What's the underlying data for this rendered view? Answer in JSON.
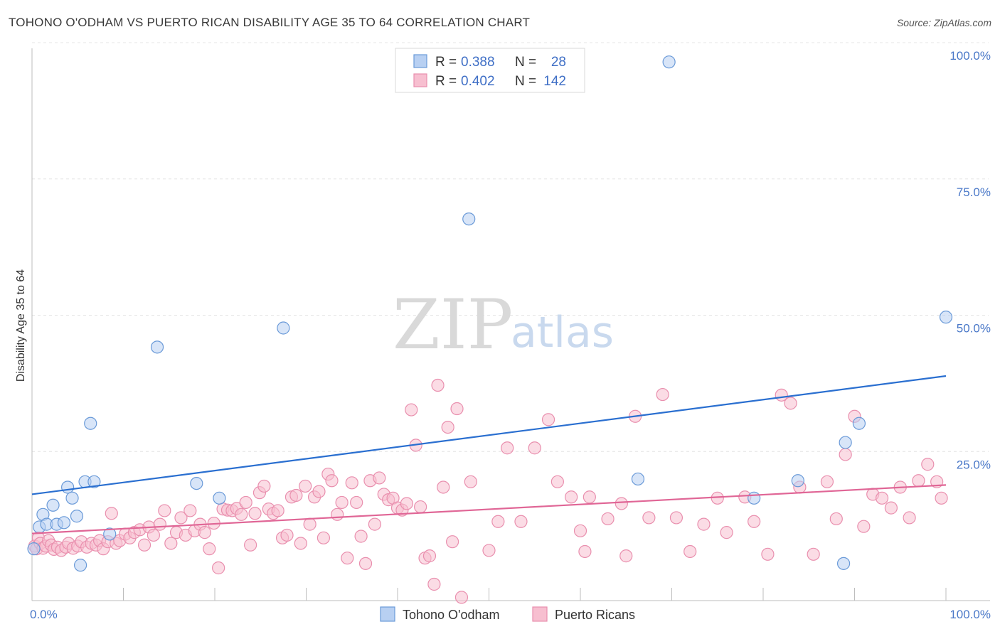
{
  "title": "TOHONO O'ODHAM VS PUERTO RICAN DISABILITY AGE 35 TO 64 CORRELATION CHART",
  "source": "Source: ZipAtlas.com",
  "watermark": {
    "part1": "ZIP",
    "part2": "atlas"
  },
  "colors": {
    "blue_fill": "#b8d0f2",
    "blue_stroke": "#6a9ad8",
    "blue_line": "#2a6fd0",
    "pink_fill": "#f7bfd0",
    "pink_stroke": "#e98fae",
    "pink_line": "#e06696",
    "axis_label": "#4a78c8"
  },
  "legend": {
    "rows": [
      {
        "r_label": "R =",
        "r_value": "0.388",
        "n_label": "N =",
        "n_value": "28"
      },
      {
        "r_label": "R =",
        "r_value": "0.402",
        "n_label": "N =",
        "n_value": "142"
      }
    ]
  },
  "bottom_legend": [
    "Tohono O'odham",
    "Puerto Ricans"
  ],
  "chart_data": {
    "type": "scatter",
    "xlabel": "",
    "ylabel": "Disability Age 35 to 64",
    "xlim": [
      0,
      100
    ],
    "ylim": [
      0,
      100
    ],
    "x_tick_labels": [
      "0.0%",
      "100.0%"
    ],
    "y_ticks": [
      25,
      50,
      75,
      100
    ],
    "y_tick_labels": [
      "25.0%",
      "50.0%",
      "75.0%",
      "100.0%"
    ],
    "grid": true,
    "legend_placement": "top-center",
    "series": [
      {
        "name": "Tohono O'odham",
        "r": 0.388,
        "n": 28,
        "trend": {
          "x": [
            0,
            100
          ],
          "y": [
            19.5,
            41.2
          ]
        },
        "points": [
          [
            0.2,
            9.5
          ],
          [
            0.8,
            13.5
          ],
          [
            1.2,
            15.8
          ],
          [
            1.6,
            14.0
          ],
          [
            2.3,
            17.5
          ],
          [
            2.7,
            14.0
          ],
          [
            3.5,
            14.3
          ],
          [
            3.9,
            20.8
          ],
          [
            4.4,
            18.8
          ],
          [
            4.9,
            15.5
          ],
          [
            5.3,
            6.5
          ],
          [
            5.8,
            21.8
          ],
          [
            6.4,
            32.5
          ],
          [
            6.8,
            21.8
          ],
          [
            8.5,
            12.2
          ],
          [
            13.7,
            46.5
          ],
          [
            18.0,
            21.5
          ],
          [
            20.5,
            18.8
          ],
          [
            27.5,
            50.0
          ],
          [
            47.8,
            70.0
          ],
          [
            66.3,
            22.3
          ],
          [
            69.7,
            98.8
          ],
          [
            79.0,
            18.8
          ],
          [
            83.8,
            22.0
          ],
          [
            88.8,
            6.8
          ],
          [
            90.5,
            32.5
          ],
          [
            89.0,
            29.0
          ],
          [
            100.0,
            52.0
          ]
        ]
      },
      {
        "name": "Puerto Ricans",
        "r": 0.402,
        "n": 142,
        "trend": {
          "x": [
            0,
            100
          ],
          "y": [
            12.3,
            21.2
          ]
        },
        "points": [
          [
            0.3,
            10.0
          ],
          [
            0.5,
            9.5
          ],
          [
            0.7,
            11.5
          ],
          [
            0.9,
            10.5
          ],
          [
            1.2,
            9.6
          ],
          [
            1.5,
            10.0
          ],
          [
            1.8,
            11.0
          ],
          [
            2.1,
            10.2
          ],
          [
            2.4,
            9.4
          ],
          [
            2.8,
            9.8
          ],
          [
            3.2,
            9.2
          ],
          [
            3.7,
            9.8
          ],
          [
            4.0,
            10.5
          ],
          [
            4.5,
            9.6
          ],
          [
            5.0,
            10.0
          ],
          [
            5.4,
            10.8
          ],
          [
            6.0,
            9.8
          ],
          [
            6.5,
            10.5
          ],
          [
            7.0,
            10.2
          ],
          [
            7.4,
            11.0
          ],
          [
            7.8,
            9.5
          ],
          [
            8.3,
            10.8
          ],
          [
            8.7,
            16.0
          ],
          [
            9.2,
            10.5
          ],
          [
            9.6,
            11.0
          ],
          [
            10.2,
            12.2
          ],
          [
            10.7,
            11.5
          ],
          [
            11.2,
            12.5
          ],
          [
            11.8,
            13.0
          ],
          [
            12.3,
            10.2
          ],
          [
            12.8,
            13.5
          ],
          [
            13.3,
            12.0
          ],
          [
            14.0,
            14.0
          ],
          [
            14.5,
            16.5
          ],
          [
            15.2,
            10.5
          ],
          [
            15.8,
            12.5
          ],
          [
            16.3,
            15.2
          ],
          [
            16.8,
            12.0
          ],
          [
            17.3,
            16.5
          ],
          [
            17.8,
            12.8
          ],
          [
            18.4,
            14.0
          ],
          [
            18.9,
            12.5
          ],
          [
            19.4,
            9.5
          ],
          [
            19.9,
            14.2
          ],
          [
            20.4,
            6.0
          ],
          [
            20.9,
            16.8
          ],
          [
            21.4,
            16.6
          ],
          [
            21.9,
            16.5
          ],
          [
            22.4,
            16.9
          ],
          [
            22.9,
            15.8
          ],
          [
            23.4,
            18.0
          ],
          [
            23.9,
            10.2
          ],
          [
            24.4,
            16.0
          ],
          [
            24.9,
            19.8
          ],
          [
            25.4,
            21.0
          ],
          [
            25.9,
            16.8
          ],
          [
            26.4,
            16.0
          ],
          [
            26.9,
            16.5
          ],
          [
            27.4,
            11.5
          ],
          [
            27.9,
            12.0
          ],
          [
            28.4,
            19.0
          ],
          [
            28.9,
            19.3
          ],
          [
            29.4,
            10.5
          ],
          [
            29.9,
            21.0
          ],
          [
            30.4,
            14.0
          ],
          [
            30.9,
            19.0
          ],
          [
            31.4,
            20.0
          ],
          [
            31.9,
            11.5
          ],
          [
            32.4,
            23.2
          ],
          [
            32.8,
            22.0
          ],
          [
            33.4,
            15.8
          ],
          [
            33.9,
            18.0
          ],
          [
            34.5,
            7.8
          ],
          [
            35.0,
            21.6
          ],
          [
            35.5,
            18.0
          ],
          [
            36.0,
            11.8
          ],
          [
            36.5,
            6.8
          ],
          [
            37.0,
            22.0
          ],
          [
            37.5,
            14.0
          ],
          [
            38.0,
            22.5
          ],
          [
            38.5,
            19.5
          ],
          [
            39.0,
            18.5
          ],
          [
            39.5,
            18.8
          ],
          [
            40.0,
            17.0
          ],
          [
            40.5,
            16.6
          ],
          [
            41.0,
            17.8
          ],
          [
            41.5,
            35.0
          ],
          [
            42.0,
            28.5
          ],
          [
            42.5,
            17.2
          ],
          [
            43.0,
            7.8
          ],
          [
            43.5,
            8.2
          ],
          [
            44.0,
            3.0
          ],
          [
            44.4,
            39.5
          ],
          [
            45.0,
            20.8
          ],
          [
            45.5,
            31.8
          ],
          [
            46.0,
            10.8
          ],
          [
            46.5,
            35.2
          ],
          [
            47.0,
            0.6
          ],
          [
            48.0,
            21.8
          ],
          [
            50.0,
            9.2
          ],
          [
            51.0,
            14.5
          ],
          [
            52.0,
            28.0
          ],
          [
            53.5,
            14.5
          ],
          [
            55.0,
            28.0
          ],
          [
            56.5,
            33.2
          ],
          [
            57.5,
            21.8
          ],
          [
            59.0,
            19.0
          ],
          [
            60.0,
            12.8
          ],
          [
            60.5,
            9.0
          ],
          [
            61.0,
            19.0
          ],
          [
            63.0,
            15.0
          ],
          [
            64.5,
            17.8
          ],
          [
            65.0,
            8.2
          ],
          [
            66.0,
            33.8
          ],
          [
            67.5,
            15.2
          ],
          [
            69.0,
            37.8
          ],
          [
            70.5,
            15.2
          ],
          [
            72.0,
            9.0
          ],
          [
            73.5,
            14.0
          ],
          [
            75.0,
            18.8
          ],
          [
            76.0,
            12.5
          ],
          [
            78.0,
            19.0
          ],
          [
            79.0,
            14.5
          ],
          [
            80.5,
            8.5
          ],
          [
            82.0,
            37.7
          ],
          [
            83.0,
            36.2
          ],
          [
            84.0,
            20.8
          ],
          [
            85.5,
            8.5
          ],
          [
            87.0,
            21.8
          ],
          [
            88.0,
            15.0
          ],
          [
            89.0,
            26.8
          ],
          [
            90.0,
            33.8
          ],
          [
            91.0,
            13.6
          ],
          [
            92.0,
            19.5
          ],
          [
            93.0,
            18.8
          ],
          [
            94.0,
            17.0
          ],
          [
            95.0,
            20.8
          ],
          [
            96.0,
            15.2
          ],
          [
            97.0,
            22.0
          ],
          [
            98.0,
            25.0
          ],
          [
            99.0,
            21.8
          ],
          [
            99.5,
            18.8
          ]
        ]
      }
    ]
  }
}
